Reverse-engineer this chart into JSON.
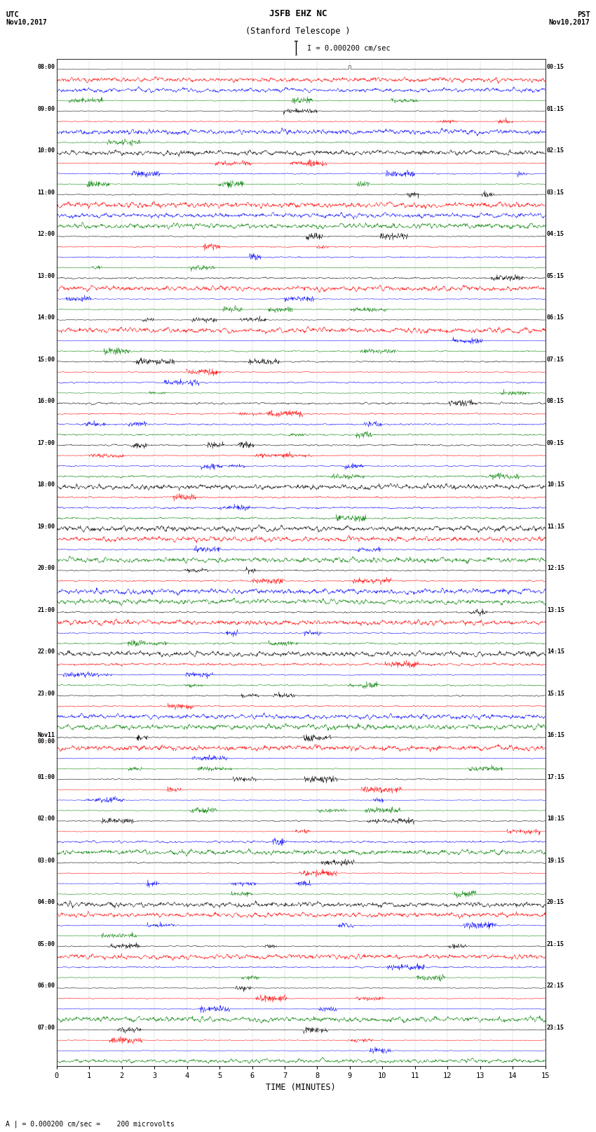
{
  "title_line1": "JSFB EHZ NC",
  "title_line2": "(Stanford Telescope )",
  "scale_label": "I = 0.000200 cm/sec",
  "utc_label": "UTC\nNov10,2017",
  "pst_label": "PST\nNov10,2017",
  "xlabel": "TIME (MINUTES)",
  "bottom_note": "A | = 0.000200 cm/sec =    200 microvolts",
  "xlim": [
    0,
    15
  ],
  "xticks": [
    0,
    1,
    2,
    3,
    4,
    5,
    6,
    7,
    8,
    9,
    10,
    11,
    12,
    13,
    14,
    15
  ],
  "bg_color": "#ffffff",
  "trace_colors": [
    "black",
    "red",
    "blue",
    "green"
  ],
  "fig_width": 8.5,
  "fig_height": 16.13,
  "left_labels": [
    "08:00",
    "09:00",
    "10:00",
    "11:00",
    "12:00",
    "13:00",
    "14:00",
    "15:00",
    "16:00",
    "17:00",
    "18:00",
    "19:00",
    "20:00",
    "21:00",
    "22:00",
    "23:00",
    "Nov11\n00:00",
    "01:00",
    "02:00",
    "03:00",
    "04:00",
    "05:00",
    "06:00",
    "07:00"
  ],
  "right_labels": [
    "00:15",
    "01:15",
    "02:15",
    "03:15",
    "04:15",
    "05:15",
    "06:15",
    "07:15",
    "08:15",
    "09:15",
    "10:15",
    "11:15",
    "12:15",
    "13:15",
    "14:15",
    "15:15",
    "16:15",
    "17:15",
    "18:15",
    "19:15",
    "20:15",
    "21:15",
    "22:15",
    "23:15"
  ]
}
